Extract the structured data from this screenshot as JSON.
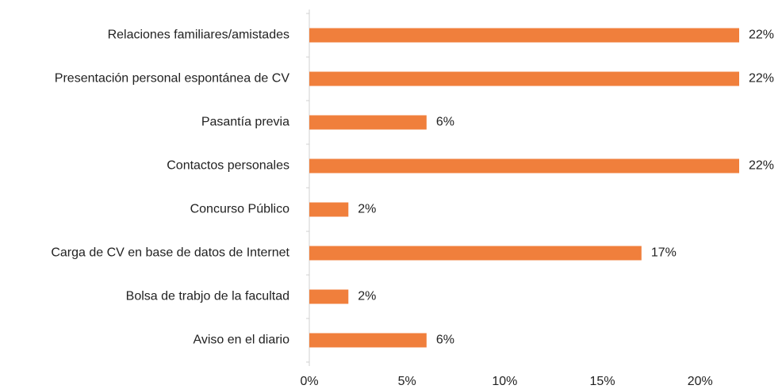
{
  "chart_data": {
    "type": "bar",
    "orientation": "horizontal",
    "categories": [
      "Relaciones familiares/amistades",
      "Presentación personal espontánea de CV",
      "Pasantía previa",
      "Contactos personales",
      "Concurso Público",
      "Carga de CV en base de datos de Internet",
      "Bolsa de trabjo de la facultad",
      "Aviso en el diario"
    ],
    "values": [
      22,
      22,
      6,
      22,
      2,
      17,
      2,
      6
    ],
    "value_labels": [
      "22%",
      "22%",
      "6%",
      "22%",
      "2%",
      "17%",
      "2%",
      "6%"
    ],
    "color": "#f07f3c",
    "xlim": [
      0,
      22
    ],
    "xticks": [
      {
        "value": 0,
        "label": "0%"
      },
      {
        "value": 5,
        "label": "5%"
      },
      {
        "value": 10,
        "label": "10%"
      },
      {
        "value": 15,
        "label": "15%"
      },
      {
        "value": 20,
        "label": "20%"
      }
    ],
    "grid": false
  }
}
